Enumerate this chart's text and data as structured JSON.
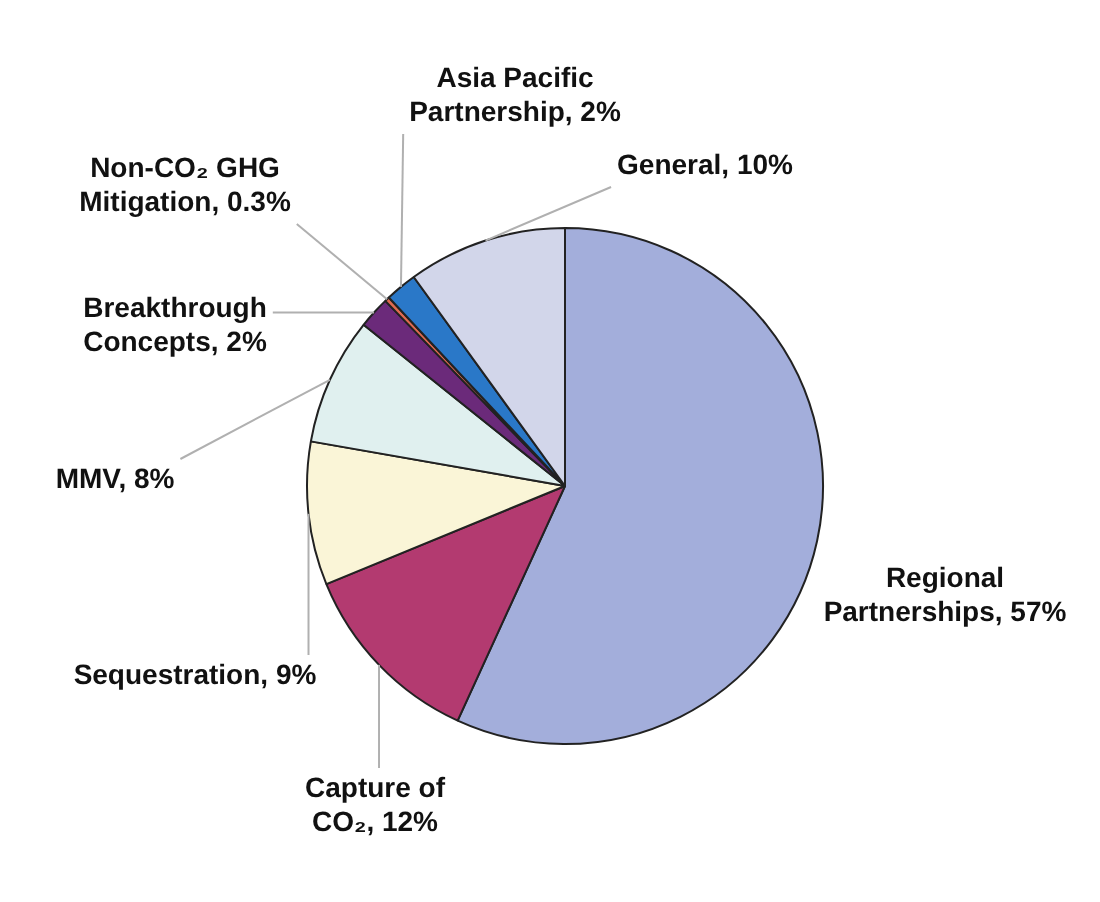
{
  "chart_data": {
    "type": "pie",
    "categories": [
      "Regional Partnerships",
      "Capture of CO₂",
      "Sequestration",
      "MMV",
      "Breakthrough Concepts",
      "Non-CO₂ GHG Mitigation",
      "Asia Pacific Partnership",
      "General"
    ],
    "values": [
      57,
      12,
      9,
      8,
      2,
      0.3,
      2,
      10
    ],
    "colors": [
      "#a3aedb",
      "#b33a70",
      "#faf5d7",
      "#e0f0ef",
      "#6b2a7a",
      "#e06a50",
      "#2a78c8",
      "#d2d6ea"
    ],
    "value_labels": [
      "57%",
      "12%",
      "9%",
      "8%",
      "2%",
      "0.3%",
      "2%",
      "10%"
    ],
    "legend": false
  }
}
